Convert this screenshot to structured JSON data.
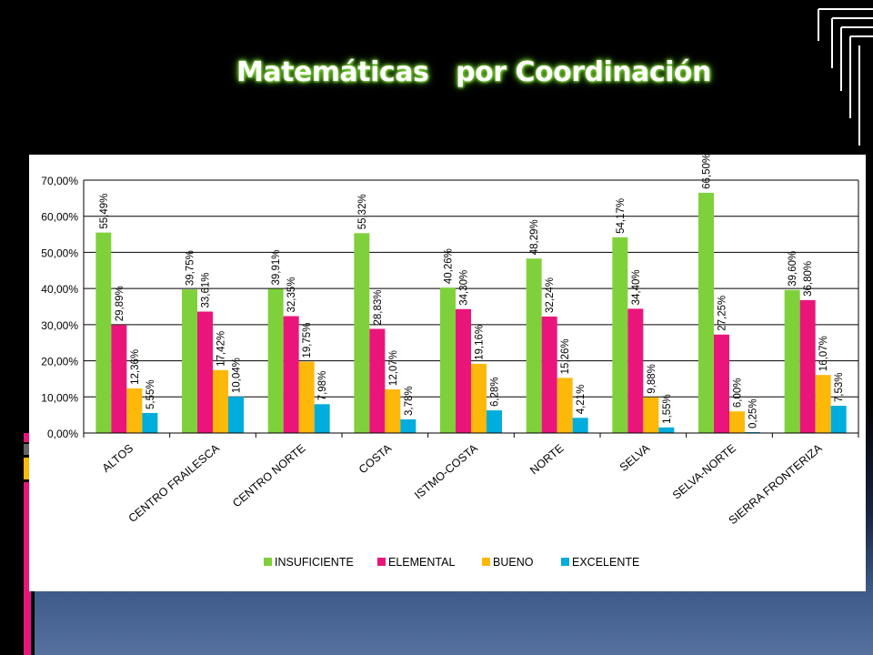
{
  "title": "Matemáticas   por Coordinación",
  "colors": {
    "insuficiente": "#7fd13b",
    "elemental": "#ea157a",
    "bueno": "#feb80a",
    "excelente": "#00addc",
    "accent_pink": "#ea157a",
    "accent_gray": "#666666",
    "accent_gold": "#feb80a"
  },
  "chart_data": {
    "type": "bar",
    "title": "",
    "xlabel": "",
    "ylabel": "",
    "ylim": [
      0,
      70
    ],
    "yticks": [
      "0,00%",
      "10,00%",
      "20,00%",
      "30,00%",
      "40,00%",
      "50,00%",
      "60,00%",
      "70,00%"
    ],
    "grid": true,
    "legend_position": "bottom",
    "categories": [
      "ALTOS",
      "CENTRO FRAILESCA",
      "CENTRO NORTE",
      "COSTA",
      "ISTMO-COSTA",
      "NORTE",
      "SELVA",
      "SELVA-NORTE",
      "SIERRA FRONTERIZA"
    ],
    "series": [
      {
        "name": "INSUFICIENTE",
        "values": [
          55.49,
          39.75,
          39.91,
          55.32,
          40.26,
          48.29,
          54.17,
          66.5,
          39.6
        ],
        "labels": [
          "55,49%",
          "39,75%",
          "39,91%",
          "55,32%",
          "40,26%",
          "48,29%",
          "54,17%",
          "66,50%",
          "39,60%"
        ]
      },
      {
        "name": "ELEMENTAL",
        "values": [
          29.89,
          33.61,
          32.35,
          28.83,
          34.3,
          32.24,
          34.4,
          27.25,
          36.8
        ],
        "labels": [
          "29,89%",
          "33,61%",
          "32,35%",
          "28,83%",
          "34,30%",
          "32,24%",
          "34,40%",
          "27,25%",
          "36,80%"
        ]
      },
      {
        "name": "BUENO",
        "values": [
          12.36,
          17.42,
          19.75,
          12.07,
          19.16,
          15.26,
          9.88,
          6.0,
          16.07
        ],
        "labels": [
          "12,36%",
          "17,42%",
          "19,75%",
          "12,07%",
          "19,16%",
          "15,26%",
          "9,88%",
          "6,00%",
          "16,07%"
        ]
      },
      {
        "name": "EXCELENTE",
        "values": [
          5.55,
          10.04,
          7.98,
          3.78,
          6.28,
          4.21,
          1.55,
          0.25,
          7.53
        ],
        "labels": [
          "5,55%",
          "10,04%",
          "7,98%",
          "3,78%",
          "6,28%",
          "4,21%",
          "1,55%",
          "0,25%",
          "7,53%"
        ]
      }
    ]
  }
}
